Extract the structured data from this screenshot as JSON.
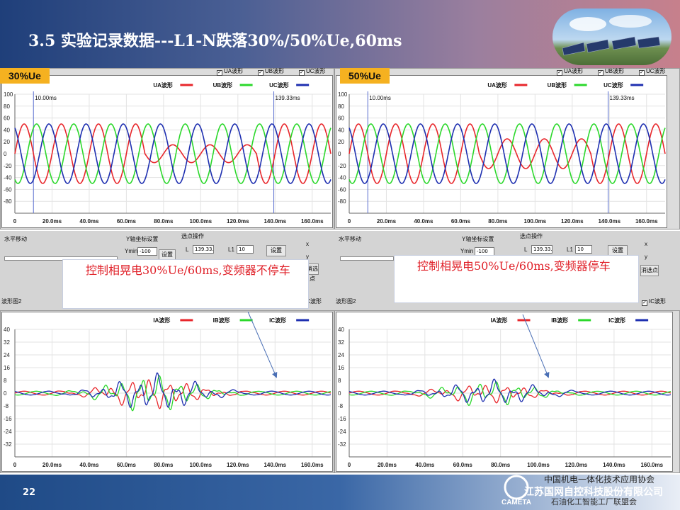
{
  "slide": {
    "title": "3.5  实验记录数据---L1-N跌落30%/50%Ue,60ms",
    "page_number": "22"
  },
  "footer": {
    "org_line1": "中国机电一体化技术应用协会",
    "org_line2": "江苏国网自控科技股份有限公司",
    "org_line3": "石油化工智能工厂联盟会",
    "logo_text": "CAMETA"
  },
  "legends": {
    "voltage": [
      "UA波形",
      "UB波形",
      "UC波形"
    ],
    "current": [
      "IA波形",
      "IB波形",
      "IC波形"
    ]
  },
  "checkboxes": [
    "UA波形",
    "UB波形",
    "UC波形"
  ],
  "current_checkbox": "IC波形",
  "colors": {
    "A": "#e8262b",
    "B": "#2bd82b",
    "C": "#1e2fb0"
  },
  "controls": {
    "h_move": "水平移动",
    "y_axis_setting": "Y轴坐标设置",
    "ymin_label": "Ymin",
    "ymin_value": "-100",
    "set_button": "设置",
    "point_op": "选点操作",
    "l_label": "L",
    "l_value": "139.33.",
    "l1_label": "L1",
    "l1_value": "10",
    "radio_x": "x",
    "radio_y": "y",
    "clear_button": "消选点",
    "wave_label": "波形图2"
  },
  "panels": [
    {
      "tag": "30%Ue",
      "annotation": "控制相晃电30%Ue/60ms,变频器不停车",
      "marker_left": "10.00ms",
      "marker_right": "139.33ms"
    },
    {
      "tag": "50%Ue",
      "annotation": "控制相晃电50%Ue/60ms,变频器停车",
      "marker_left": "10.00ms",
      "marker_right": "139.33ms"
    }
  ],
  "chart_data": [
    {
      "type": "line",
      "title": "",
      "legend": [
        "UA波形",
        "UB波形",
        "UC波形"
      ],
      "xlim": [
        0,
        170
      ],
      "ylim": [
        -100,
        100
      ],
      "x_ticks": [
        "0",
        "20.0ms",
        "40.0ms",
        "60.0ms",
        "80.0ms",
        "100.0ms",
        "120.0ms",
        "140.0ms",
        "160.0ms"
      ],
      "y_ticks": [
        "100",
        "80",
        "60",
        "40",
        "20",
        "0",
        "-20",
        "-40",
        "-60",
        "-80"
      ],
      "markers_x": [
        10.0,
        139.33
      ],
      "series": [
        {
          "name": "UA波形",
          "amplitude": 50,
          "dip_amplitude": 15,
          "dip_window_ms": [
            70,
            130
          ]
        },
        {
          "name": "UB波形",
          "amplitude": 50
        },
        {
          "name": "UC波形",
          "amplitude": 50
        }
      ]
    },
    {
      "type": "line",
      "title": "",
      "legend": [
        "UA波形",
        "UB波形",
        "UC波形"
      ],
      "xlim": [
        0,
        170
      ],
      "ylim": [
        -100,
        100
      ],
      "x_ticks": [
        "0",
        "20.0ms",
        "40.0ms",
        "60.0ms",
        "80.0ms",
        "100.0ms",
        "120.0ms",
        "140.0ms",
        "160.0ms"
      ],
      "y_ticks": [
        "100",
        "80",
        "60",
        "40",
        "20",
        "0",
        "-20",
        "-40",
        "-60",
        "-80"
      ],
      "markers_x": [
        10.0,
        139.33
      ],
      "series": [
        {
          "name": "UA波形",
          "amplitude": 50,
          "dip_amplitude": 25,
          "dip_window_ms": [
            70,
            130
          ]
        },
        {
          "name": "UB波形",
          "amplitude": 50
        },
        {
          "name": "UC波形",
          "amplitude": 50
        }
      ]
    },
    {
      "type": "line",
      "title": "",
      "legend": [
        "IA波形",
        "IB波形",
        "IC波形"
      ],
      "xlim": [
        0,
        170
      ],
      "ylim": [
        -40,
        40
      ],
      "x_ticks": [
        "0",
        "20.0ms",
        "40.0ms",
        "60.0ms",
        "80.0ms",
        "100.0ms",
        "120.0ms",
        "140.0ms",
        "160.0ms"
      ],
      "y_ticks": [
        "40",
        "32",
        "24",
        "16",
        "8",
        "0",
        "-8",
        "-16",
        "-24",
        "-32"
      ],
      "series": [
        {
          "name": "IA波形",
          "peak": 10
        },
        {
          "name": "IB波形",
          "peak": 12
        },
        {
          "name": "IC波形",
          "peak": 12
        }
      ]
    },
    {
      "type": "line",
      "title": "",
      "legend": [
        "IA波形",
        "IB波形",
        "IC波形"
      ],
      "xlim": [
        0,
        170
      ],
      "ylim": [
        -40,
        40
      ],
      "x_ticks": [
        "0",
        "20.0ms",
        "40.0ms",
        "60.0ms",
        "80.0ms",
        "100.0ms",
        "120.0ms",
        "140.0ms",
        "160.0ms"
      ],
      "y_ticks": [
        "40",
        "32",
        "24",
        "16",
        "8",
        "0",
        "-8",
        "-16",
        "-24",
        "-32"
      ],
      "series": [
        {
          "name": "IA波形",
          "peak": 6
        },
        {
          "name": "IB波形",
          "peak": 8
        },
        {
          "name": "IC波形",
          "peak": 8
        }
      ]
    }
  ]
}
